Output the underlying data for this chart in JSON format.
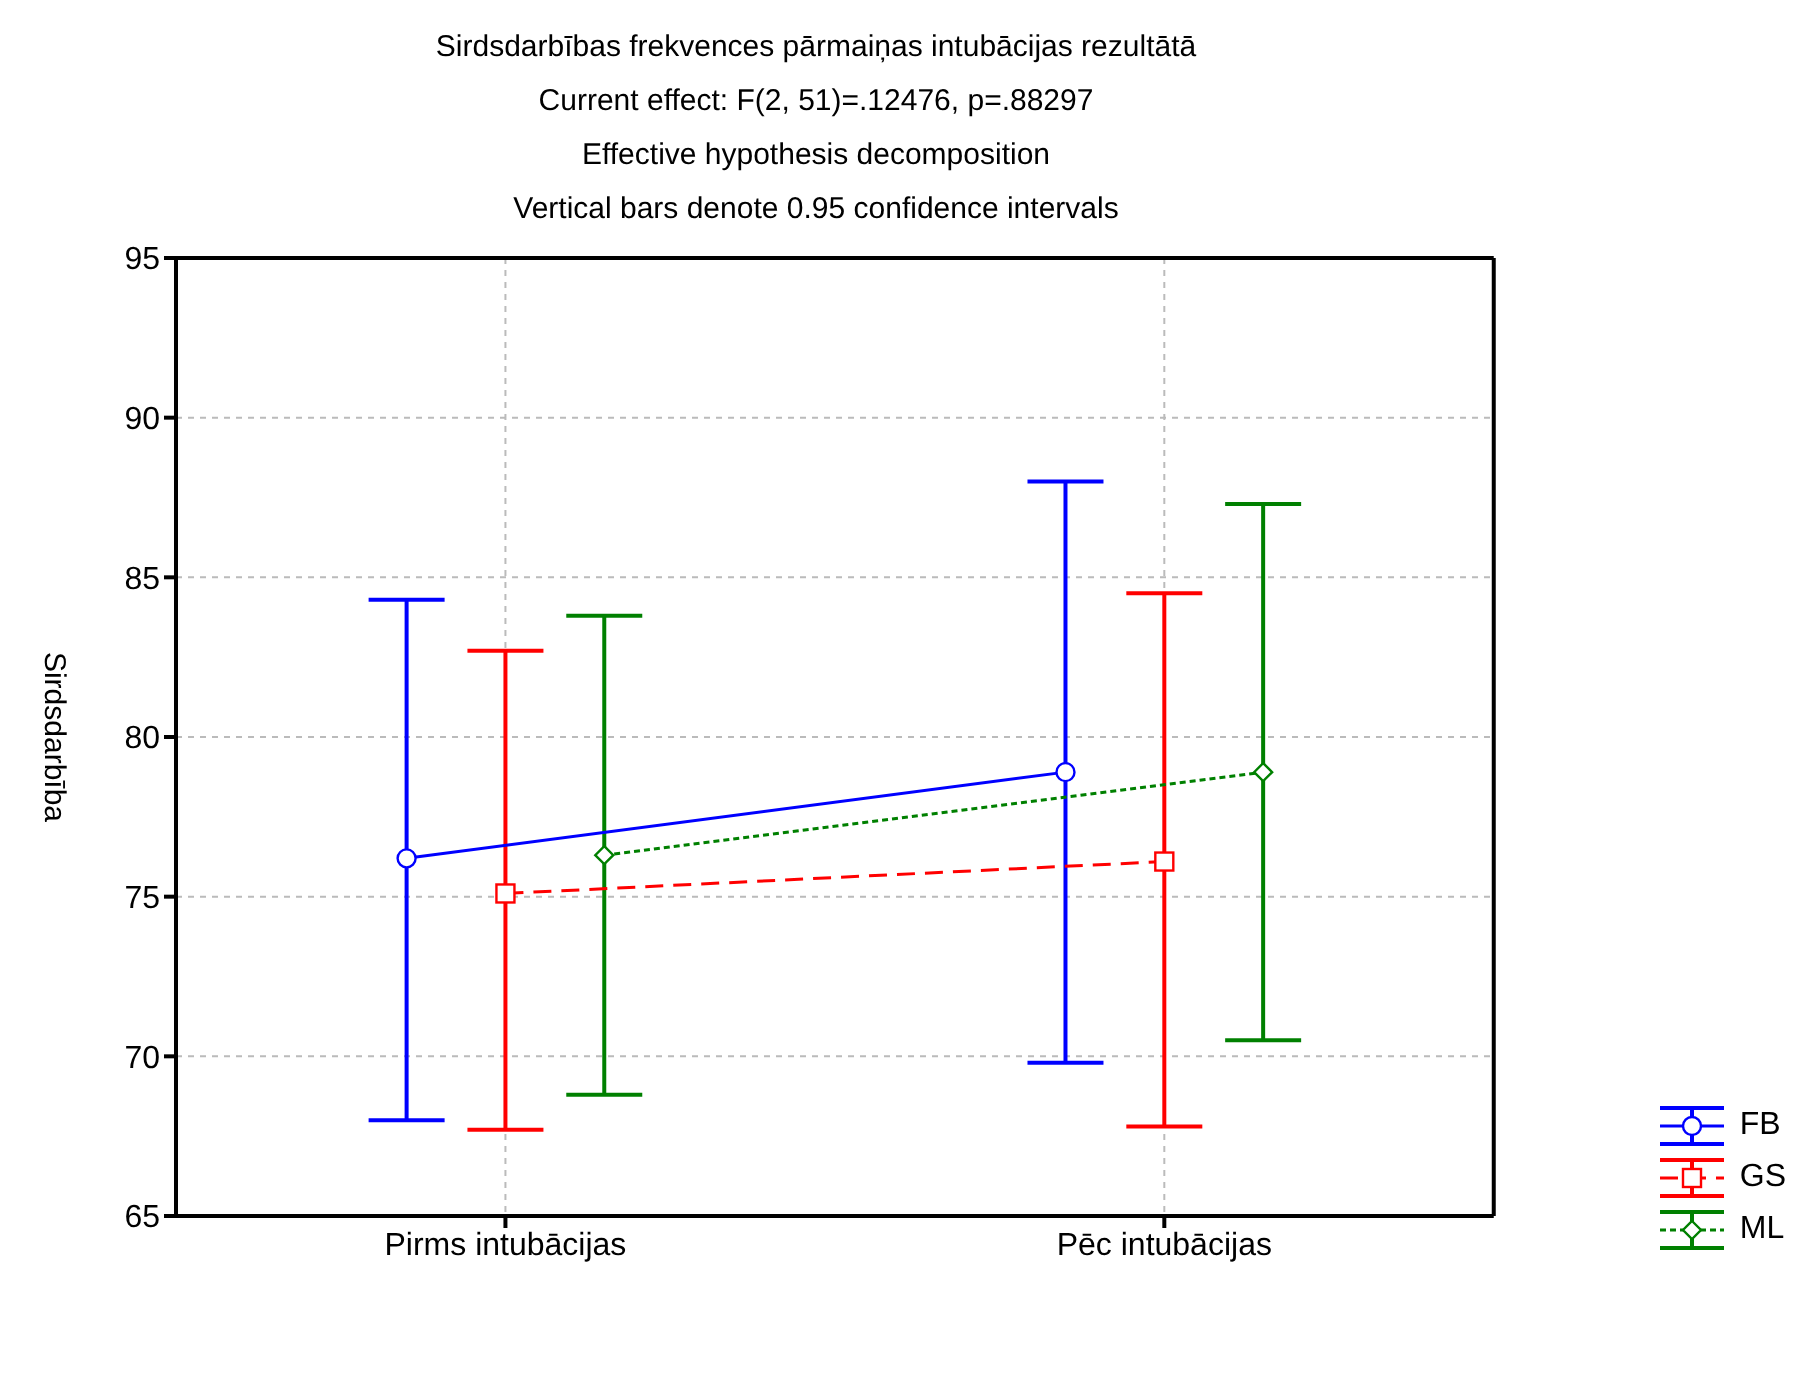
{
  "chart_data": {
    "type": "line",
    "title": "Sirdsdarbības frekvences pārmaiņas intubācijas rezultātā",
    "subtitle": "Current effect: F(2, 51)=.12476, p=.88297",
    "annotations": [
      "Effective hypothesis decomposition",
      "Vertical bars denote 0.95 confidence intervals"
    ],
    "ylabel": "Sirdsdarbība",
    "categories": [
      "Pirms intubācijas",
      "Pēc intubācijas"
    ],
    "series": [
      {
        "name": "FB",
        "color": "#0000ff",
        "values": [
          76.2,
          78.9
        ],
        "errors": [
          [
            68.0,
            84.3
          ],
          [
            69.8,
            88.0
          ]
        ],
        "marker": "circle",
        "line_style": "solid"
      },
      {
        "name": "GS",
        "color": "#ff0000",
        "values": [
          75.1,
          76.1
        ],
        "errors": [
          [
            67.7,
            82.7
          ],
          [
            67.8,
            84.5
          ]
        ],
        "marker": "square",
        "line_style": "dashed"
      },
      {
        "name": "ML",
        "color": "#008000",
        "values": [
          76.3,
          78.9
        ],
        "errors": [
          [
            68.8,
            83.8
          ],
          [
            70.5,
            87.3
          ]
        ],
        "marker": "diamond",
        "line_style": "dotted"
      }
    ],
    "ylim": [
      65,
      95
    ],
    "yticks": [
      65,
      70,
      75,
      80,
      85,
      90,
      95
    ],
    "grid": true,
    "legend": "bottom right"
  }
}
